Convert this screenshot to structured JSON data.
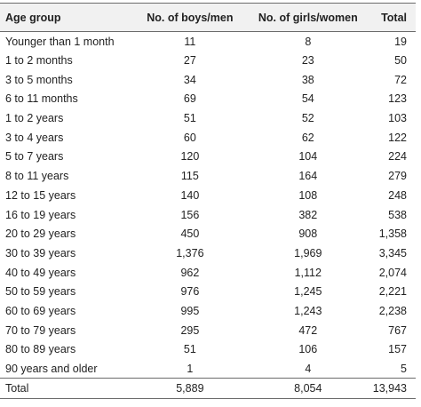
{
  "table": {
    "headers": {
      "age_group": "Age group",
      "boys": "No. of boys/men",
      "girls": "No. of girls/women",
      "total": "Total"
    },
    "rows": [
      {
        "age": "Younger than 1 month",
        "boys": "11",
        "girls": "8",
        "total": "19"
      },
      {
        "age": "1 to 2 months",
        "boys": "27",
        "girls": "23",
        "total": "50"
      },
      {
        "age": "3 to 5 months",
        "boys": "34",
        "girls": "38",
        "total": "72"
      },
      {
        "age": "6 to 11 months",
        "boys": "69",
        "girls": "54",
        "total": "123"
      },
      {
        "age": "1 to 2 years",
        "boys": "51",
        "girls": "52",
        "total": "103"
      },
      {
        "age": "3 to 4 years",
        "boys": "60",
        "girls": "62",
        "total": "122"
      },
      {
        "age": "5 to 7 years",
        "boys": "120",
        "girls": "104",
        "total": "224"
      },
      {
        "age": "8 to 11 years",
        "boys": "115",
        "girls": "164",
        "total": "279"
      },
      {
        "age": "12 to 15 years",
        "boys": "140",
        "girls": "108",
        "total": "248"
      },
      {
        "age": "16 to 19 years",
        "boys": "156",
        "girls": "382",
        "total": "538"
      },
      {
        "age": "20 to 29 years",
        "boys": "450",
        "girls": "908",
        "total": "1,358"
      },
      {
        "age": "30 to 39 years",
        "boys": "1,376",
        "girls": "1,969",
        "total": "3,345"
      },
      {
        "age": "40 to 49 years",
        "boys": "962",
        "girls": "1,112",
        "total": "2,074"
      },
      {
        "age": "50 to 59 years",
        "boys": "976",
        "girls": "1,245",
        "total": "2,221"
      },
      {
        "age": "60 to 69 years",
        "boys": "995",
        "girls": "1,243",
        "total": "2,238"
      },
      {
        "age": "70 to 79 years",
        "boys": "295",
        "girls": "472",
        "total": "767"
      },
      {
        "age": "80 to 89 years",
        "boys": "51",
        "girls": "106",
        "total": "157"
      },
      {
        "age": "90 years and older",
        "boys": "1",
        "girls": "4",
        "total": "5"
      }
    ],
    "total_row": {
      "age": "Total",
      "boys": "5,889",
      "girls": "8,054",
      "total": "13,943"
    }
  },
  "colors": {
    "header_bg": "#f1f1f1",
    "rule": "#6b6b6b",
    "text": "#222222"
  }
}
